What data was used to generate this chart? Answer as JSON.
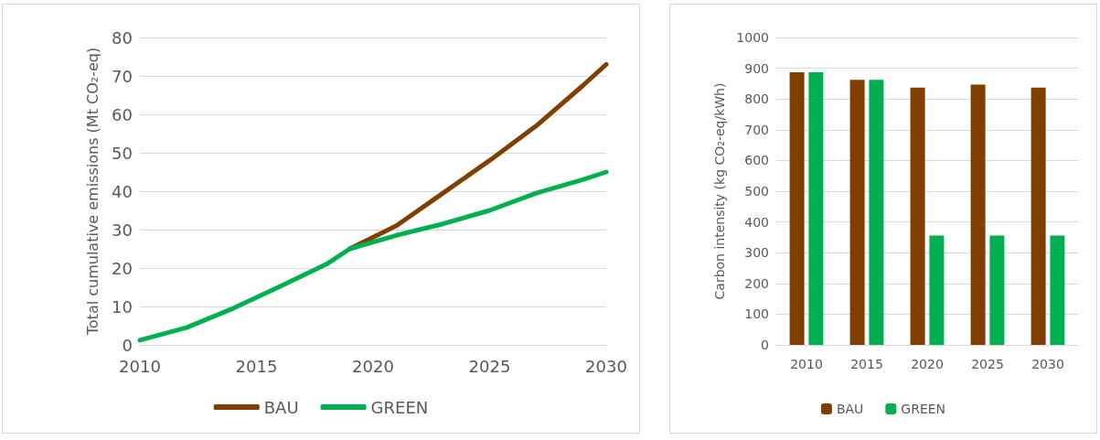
{
  "chart_data": [
    {
      "type": "line",
      "ylabel": "Total cumulative emissions (Mt CO₂-eq)",
      "xlim": [
        2010,
        2030
      ],
      "xticks": [
        2010,
        2015,
        2020,
        2025,
        2030
      ],
      "ylim": [
        0,
        80
      ],
      "yticks": [
        0,
        10,
        20,
        30,
        40,
        50,
        60,
        70,
        80
      ],
      "grid": "y",
      "legend": "bottom",
      "marker": "none",
      "line_style": "solid",
      "series": [
        {
          "name": "BAU",
          "color": "#7f3f00",
          "x": [
            2019,
            2021,
            2023,
            2025,
            2027,
            2029,
            2030
          ],
          "values": [
            25,
            31,
            39.5,
            48,
            57,
            67.5,
            73
          ]
        },
        {
          "name": "GREEN",
          "color": "#00b050",
          "x": [
            2010,
            2012,
            2014,
            2016,
            2018,
            2019,
            2021,
            2023,
            2025,
            2027,
            2029,
            2030
          ],
          "values": [
            1.2,
            4.5,
            9.5,
            15.2,
            21,
            25,
            28.5,
            31.5,
            35,
            39.5,
            43,
            45
          ]
        }
      ]
    },
    {
      "type": "bar",
      "ylabel": "Carbon intensity (kg CO₂-eq/kWh)",
      "categories": [
        "2010",
        "2015",
        "2020",
        "2025",
        "2030"
      ],
      "ylim": [
        0,
        1000
      ],
      "yticks": [
        0,
        100,
        200,
        300,
        400,
        500,
        600,
        700,
        800,
        900,
        1000
      ],
      "grid": "y",
      "legend": "bottom",
      "series": [
        {
          "name": "BAU",
          "color": "#7f3f00",
          "values": [
            887,
            862,
            837,
            847,
            837
          ]
        },
        {
          "name": "GREEN",
          "color": "#00b050",
          "values": [
            887,
            862,
            356,
            356,
            356
          ]
        }
      ]
    }
  ]
}
